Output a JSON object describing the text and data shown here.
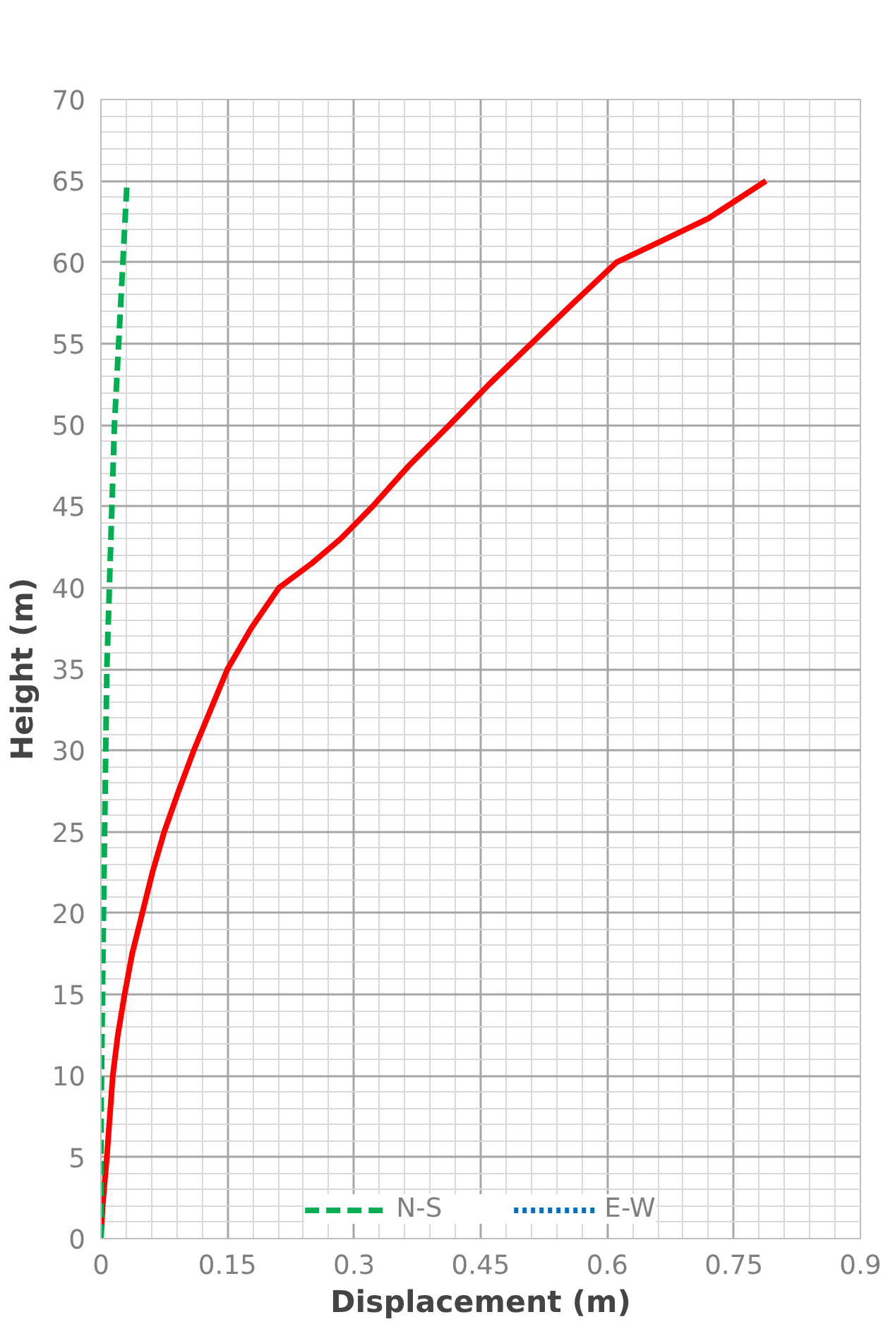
{
  "chart_data": {
    "type": "line",
    "xlabel": "Displacement (m)",
    "ylabel": "Height (m)",
    "xlim": [
      0,
      0.9
    ],
    "ylim": [
      0,
      70
    ],
    "xticks": [
      0,
      {
        "value": 0.03,
        "label": null
      },
      {
        "value": 0.06,
        "label": null
      },
      {
        "value": 0.09,
        "label": null
      },
      {
        "value": 0.12,
        "label": null
      },
      0.15,
      {
        "value": 0.18,
        "label": null
      },
      {
        "value": 0.21,
        "label": null
      },
      {
        "value": 0.24,
        "label": null
      },
      {
        "value": 0.27,
        "label": null
      },
      0.3,
      {
        "value": 0.33,
        "label": null
      },
      {
        "value": 0.36,
        "label": null
      },
      {
        "value": 0.39,
        "label": null
      },
      {
        "value": 0.42,
        "label": null
      },
      0.45,
      {
        "value": 0.48,
        "label": null
      },
      {
        "value": 0.51,
        "label": null
      },
      {
        "value": 0.54,
        "label": null
      },
      {
        "value": 0.57,
        "label": null
      },
      0.6,
      {
        "value": 0.63,
        "label": null
      },
      {
        "value": 0.66,
        "label": null
      },
      {
        "value": 0.69,
        "label": null
      },
      {
        "value": 0.72,
        "label": null
      },
      0.75,
      {
        "value": 0.78,
        "label": null
      },
      {
        "value": 0.81,
        "label": null
      },
      {
        "value": 0.84,
        "label": null
      },
      {
        "value": 0.87,
        "label": null
      },
      0.9
    ],
    "yticks": [
      0,
      {
        "value": 1,
        "label": null
      },
      {
        "value": 2,
        "label": null
      },
      {
        "value": 3,
        "label": null
      },
      {
        "value": 4,
        "label": null
      },
      5,
      {
        "value": 6,
        "label": null
      },
      {
        "value": 7,
        "label": null
      },
      {
        "value": 8,
        "label": null
      },
      {
        "value": 9,
        "label": null
      },
      10,
      {
        "value": 11,
        "label": null
      },
      {
        "value": 12,
        "label": null
      },
      {
        "value": 13,
        "label": null
      },
      {
        "value": 14,
        "label": null
      },
      15,
      {
        "value": 16,
        "label": null
      },
      {
        "value": 17,
        "label": null
      },
      {
        "value": 18,
        "label": null
      },
      {
        "value": 19,
        "label": null
      },
      20,
      {
        "value": 21,
        "label": null
      },
      {
        "value": 22,
        "label": null
      },
      {
        "value": 23,
        "label": null
      },
      {
        "value": 24,
        "label": null
      },
      25,
      {
        "value": 26,
        "label": null
      },
      {
        "value": 27,
        "label": null
      },
      {
        "value": 28,
        "label": null
      },
      {
        "value": 29,
        "label": null
      },
      30,
      {
        "value": 31,
        "label": null
      },
      {
        "value": 32,
        "label": null
      },
      {
        "value": 33,
        "label": null
      },
      {
        "value": 34,
        "label": null
      },
      35,
      {
        "value": 36,
        "label": null
      },
      {
        "value": 37,
        "label": null
      },
      {
        "value": 38,
        "label": null
      },
      {
        "value": 39,
        "label": null
      },
      40,
      {
        "value": 41,
        "label": null
      },
      {
        "value": 42,
        "label": null
      },
      {
        "value": 43,
        "label": null
      },
      {
        "value": 44,
        "label": null
      },
      45,
      {
        "value": 46,
        "label": null
      },
      {
        "value": 47,
        "label": null
      },
      {
        "value": 48,
        "label": null
      },
      {
        "value": 49,
        "label": null
      },
      50,
      {
        "value": 51,
        "label": null
      },
      {
        "value": 52,
        "label": null
      },
      {
        "value": 53,
        "label": null
      },
      {
        "value": 54,
        "label": null
      },
      55,
      {
        "value": 56,
        "label": null
      },
      {
        "value": 57,
        "label": null
      },
      {
        "value": 58,
        "label": null
      },
      {
        "value": 59,
        "label": null
      },
      60,
      {
        "value": 61,
        "label": null
      },
      {
        "value": 62,
        "label": null
      },
      {
        "value": 63,
        "label": null
      },
      {
        "value": 64,
        "label": null
      },
      65,
      {
        "value": 66,
        "label": null
      },
      {
        "value": 67,
        "label": null
      },
      {
        "value": 68,
        "label": null
      },
      {
        "value": 69,
        "label": null
      },
      70
    ],
    "grid": true,
    "legend": "bottom",
    "marker": "none",
    "series": [
      {
        "color": "#ff0000",
        "line_style": "solid",
        "x": [
          0,
          0.002,
          0.007,
          0.014,
          0.02,
          0.028,
          0.037,
          0.049,
          0.061,
          0.075,
          0.092,
          0.11,
          0.13,
          0.15,
          0.178,
          0.211,
          0.25,
          0.284,
          0.322,
          0.365,
          0.413,
          0.46,
          0.51,
          0.56,
          0.611,
          0.664,
          0.72,
          0.788
        ],
        "values": [
          0,
          2,
          5,
          10,
          12.5,
          15,
          17.5,
          20,
          22.5,
          25,
          27.5,
          30,
          32.5,
          35,
          37.5,
          40,
          41.5,
          43,
          45,
          47.5,
          50,
          52.5,
          55,
          57.5,
          60,
          61.3,
          62.7,
          65
        ]
      },
      {
        "name": "N-S",
        "color": "#00b050",
        "line_style": "dashed",
        "x": [
          0,
          0,
          0.003,
          0.007,
          0.016,
          0.031
        ],
        "values": [
          0,
          7,
          20,
          35,
          50,
          65
        ]
      },
      {
        "name": "E-W",
        "color": "#0070c0",
        "line_style": "dotted",
        "x": [
          null
        ],
        "values": [
          null
        ]
      }
    ]
  }
}
